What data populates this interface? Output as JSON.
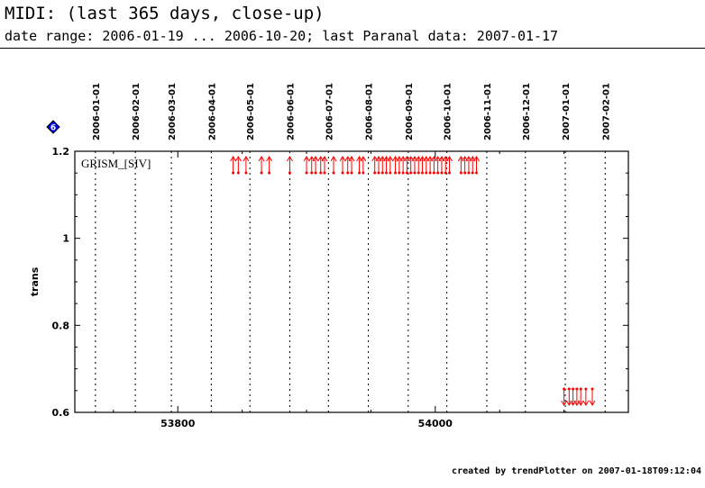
{
  "header": {
    "title": "MIDI: (last 365 days, close-up)",
    "subtitle": "date range: 2006-01-19 ... 2006-10-20; last Paranal data: 2007-01-17"
  },
  "footer": {
    "text": "created by trendPlotter on 2007-01-18T09:12:04"
  },
  "badge": {
    "label": "6",
    "color": "#0000ff"
  },
  "chart_data": {
    "type": "scatter",
    "title": "",
    "xlabel": "",
    "ylabel": "trans",
    "xlim": [
      53720,
      54150
    ],
    "ylim": [
      0.6,
      1.2
    ],
    "x_ticks": [
      53800,
      54000
    ],
    "y_ticks": [
      0.6,
      0.8,
      1,
      1.2
    ],
    "y_tick_labels": [
      "0.6",
      "0.8",
      "1",
      "1.2"
    ],
    "date_axis": {
      "labels": [
        "2006-01-01",
        "2006-02-01",
        "2006-03-01",
        "2006-04-01",
        "2006-05-01",
        "2006-06-01",
        "2006-07-01",
        "2006-08-01",
        "2006-09-01",
        "2006-10-01",
        "2006-11-01",
        "2006-12-01",
        "2007-01-01",
        "2007-02-01"
      ],
      "mjd": [
        53736,
        53767,
        53795,
        53826,
        53856,
        53887,
        53917,
        53948,
        53979,
        54009,
        54040,
        54070,
        54101,
        54132
      ]
    },
    "grid": "vertical dotted at month boundaries",
    "annotation": "GRISM_[SIV]",
    "marker_color": "#ff0000",
    "series": [
      {
        "name": "",
        "note": "values above the plotted range, drawn as up arrows at the top edge",
        "direction": "up",
        "x": [
          53843,
          53847,
          53853,
          53865,
          53871,
          53887,
          53900,
          53904,
          53907,
          53911,
          53914,
          53921,
          53928,
          53932,
          53935,
          53941,
          53944,
          53953,
          53956,
          53959,
          53962,
          53965,
          53969,
          53972,
          53975,
          53978,
          53981,
          53984,
          53987,
          53990,
          53993,
          53996,
          53999,
          54002,
          54005,
          54008,
          54011,
          54020,
          54023,
          54026,
          54029,
          54032
        ]
      },
      {
        "name": "",
        "note": "values below the plotted range, drawn as down arrows at the bottom edge",
        "direction": "down",
        "x": [
          54100,
          54104,
          54107,
          54110,
          54113,
          54117,
          54122
        ]
      }
    ]
  }
}
